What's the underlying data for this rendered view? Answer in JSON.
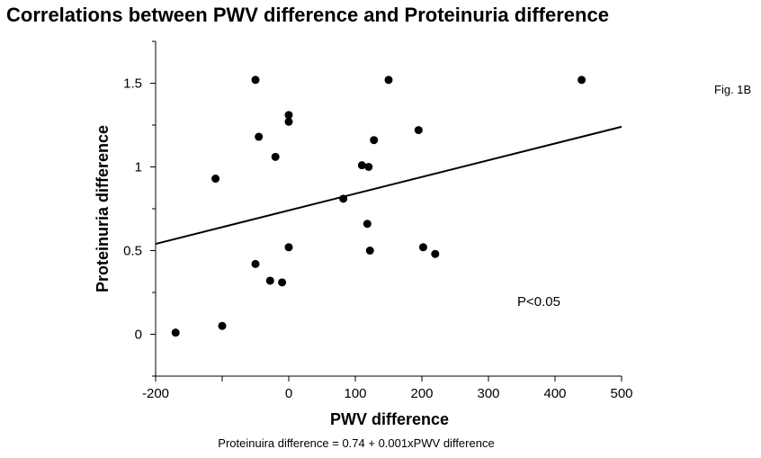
{
  "chart_data": {
    "type": "scatter",
    "title": "Correlations between PWV difference and Proteinuria difference",
    "figure_label": "Fig. 1B",
    "xlabel": "PWV difference",
    "ylabel": "Proteinuria difference",
    "xlim": [
      -200,
      500
    ],
    "ylim": [
      -0.25,
      1.75
    ],
    "x_ticks": [
      -200,
      -100,
      0,
      100,
      200,
      300,
      400,
      500
    ],
    "x_tick_labels": [
      "-200",
      "",
      "0",
      "100",
      "200",
      "300",
      "400",
      "500"
    ],
    "y_ticks": [
      0,
      0.5,
      1,
      1.5
    ],
    "y_tick_labels": [
      "0",
      "0.5",
      "1",
      "1.5"
    ],
    "points": [
      {
        "x": -170,
        "y": 0.01
      },
      {
        "x": -100,
        "y": 0.05
      },
      {
        "x": -110,
        "y": 0.93
      },
      {
        "x": -50,
        "y": 1.52
      },
      {
        "x": -45,
        "y": 1.18
      },
      {
        "x": -50,
        "y": 0.42
      },
      {
        "x": -28,
        "y": 0.32
      },
      {
        "x": -20,
        "y": 1.06
      },
      {
        "x": -10,
        "y": 0.31
      },
      {
        "x": 0,
        "y": 1.31
      },
      {
        "x": 0,
        "y": 1.27
      },
      {
        "x": 0,
        "y": 0.52
      },
      {
        "x": 82,
        "y": 0.81
      },
      {
        "x": 110,
        "y": 1.01
      },
      {
        "x": 118,
        "y": 0.66
      },
      {
        "x": 120,
        "y": 1.0
      },
      {
        "x": 122,
        "y": 0.5
      },
      {
        "x": 128,
        "y": 1.16
      },
      {
        "x": 150,
        "y": 1.52
      },
      {
        "x": 195,
        "y": 1.22
      },
      {
        "x": 202,
        "y": 0.52
      },
      {
        "x": 220,
        "y": 0.48
      },
      {
        "x": 440,
        "y": 1.52
      }
    ],
    "regression": {
      "intercept": 0.74,
      "slope": 0.001
    },
    "regression_label": "Proteinuira difference = 0.74 + 0.001xPWV difference",
    "annotation": "P<0.05",
    "grid": false,
    "colors": {
      "points": "#000000",
      "line": "#000000"
    }
  }
}
